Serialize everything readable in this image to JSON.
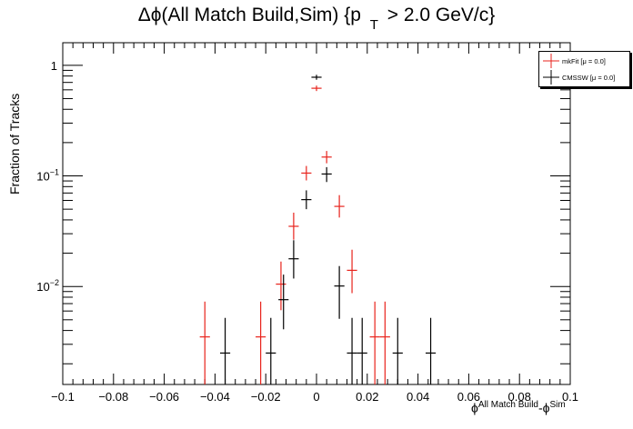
{
  "chart_data": {
    "type": "scatter",
    "title": "Δϕ(All Match Build,Sim) {p",
    "title_sub": "T",
    "title_tail": "> 2.0 GeV/c}",
    "xlabel": "ϕ",
    "xlabel_sup1": "All Match Build",
    "xlabel_mid": "-ϕ",
    "xlabel_sup2": "Sim",
    "ylabel": "Fraction of Tracks",
    "xlim": [
      -0.1,
      0.1
    ],
    "ylim": [
      0.0013,
      1.6
    ],
    "y_scale": "log",
    "x_ticks": [
      {
        "v": -0.1,
        "label": "−0.1"
      },
      {
        "v": -0.08,
        "label": "−0.08"
      },
      {
        "v": -0.06,
        "label": "−0.06"
      },
      {
        "v": -0.04,
        "label": "−0.04"
      },
      {
        "v": -0.02,
        "label": "−0.02"
      },
      {
        "v": 0,
        "label": "0"
      },
      {
        "v": 0.02,
        "label": "0.02"
      },
      {
        "v": 0.04,
        "label": "0.04"
      },
      {
        "v": 0.06,
        "label": "0.06"
      },
      {
        "v": 0.08,
        "label": "0.08"
      },
      {
        "v": 0.1,
        "label": "0.1"
      }
    ],
    "y_ticks": [
      {
        "v": 1,
        "label": "1"
      },
      {
        "v": 0.1,
        "label": "10",
        "exp": "−1"
      },
      {
        "v": 0.01,
        "label": "10",
        "exp": "−2"
      }
    ],
    "bin_half_width": 0.002,
    "legend_position": "top-right",
    "series": [
      {
        "name": "mkFit [μ = 0.0]",
        "color": "#e8231c",
        "points": [
          {
            "x": -0.044,
            "y": 0.0035,
            "ylo": 0.0012,
            "yhi": 0.0073
          },
          {
            "x": -0.022,
            "y": 0.0035,
            "ylo": 0.0012,
            "yhi": 0.0073
          },
          {
            "x": -0.014,
            "y": 0.0105,
            "ylo": 0.0061,
            "yhi": 0.0168
          },
          {
            "x": -0.009,
            "y": 0.035,
            "ylo": 0.0265,
            "yhi": 0.0465
          },
          {
            "x": -0.004,
            "y": 0.106,
            "ylo": 0.091,
            "yhi": 0.123
          },
          {
            "x": 0.0,
            "y": 0.62,
            "ylo": 0.585,
            "yhi": 0.655
          },
          {
            "x": 0.004,
            "y": 0.148,
            "ylo": 0.13,
            "yhi": 0.168
          },
          {
            "x": 0.009,
            "y": 0.053,
            "ylo": 0.042,
            "yhi": 0.067
          },
          {
            "x": 0.014,
            "y": 0.014,
            "ylo": 0.0087,
            "yhi": 0.0215
          },
          {
            "x": 0.023,
            "y": 0.0035,
            "ylo": 0.0012,
            "yhi": 0.0073
          },
          {
            "x": 0.027,
            "y": 0.0035,
            "ylo": 0.0012,
            "yhi": 0.0073
          }
        ]
      },
      {
        "name": "CMSSW [μ = 0.0]",
        "color": "#000000",
        "points": [
          {
            "x": -0.036,
            "y": 0.0025,
            "ylo": 0.0008,
            "yhi": 0.0052
          },
          {
            "x": -0.018,
            "y": 0.0025,
            "ylo": 0.0008,
            "yhi": 0.0052
          },
          {
            "x": -0.013,
            "y": 0.0076,
            "ylo": 0.0041,
            "yhi": 0.0128
          },
          {
            "x": -0.009,
            "y": 0.0178,
            "ylo": 0.0118,
            "yhi": 0.0262
          },
          {
            "x": -0.004,
            "y": 0.061,
            "ylo": 0.05,
            "yhi": 0.074
          },
          {
            "x": 0.0,
            "y": 0.78,
            "ylo": 0.74,
            "yhi": 0.82
          },
          {
            "x": 0.004,
            "y": 0.104,
            "ylo": 0.088,
            "yhi": 0.12
          },
          {
            "x": 0.009,
            "y": 0.0101,
            "ylo": 0.0051,
            "yhi": 0.0153
          },
          {
            "x": 0.014,
            "y": 0.0025,
            "ylo": 0.0008,
            "yhi": 0.0052
          },
          {
            "x": 0.018,
            "y": 0.0025,
            "ylo": 0.0008,
            "yhi": 0.0052
          },
          {
            "x": 0.032,
            "y": 0.0025,
            "ylo": 0.0008,
            "yhi": 0.0052
          },
          {
            "x": 0.045,
            "y": 0.0025,
            "ylo": 0.0008,
            "yhi": 0.0052
          }
        ]
      }
    ]
  }
}
